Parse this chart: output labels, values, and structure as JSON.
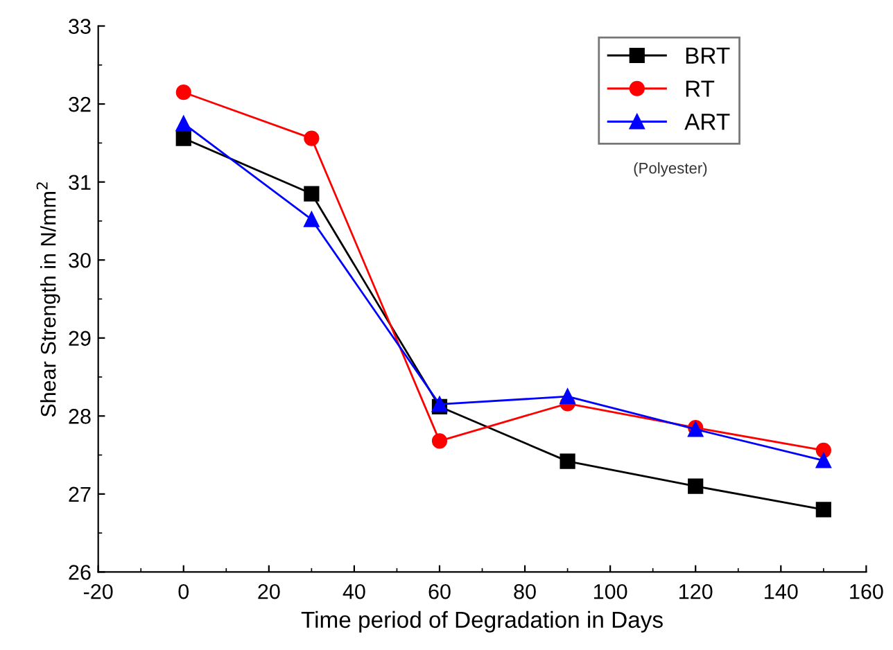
{
  "chart_data": {
    "type": "line",
    "xlabel": "Time period of Degradation in Days",
    "ylabel": "Shear Strength in N/mm$^{2}$",
    "x": [
      0,
      30,
      60,
      90,
      120,
      150
    ],
    "series": [
      {
        "name": "BRT",
        "color": "#000000",
        "marker": "square",
        "values": [
          31.56,
          30.85,
          28.12,
          27.42,
          27.1,
          26.8
        ]
      },
      {
        "name": "RT",
        "color": "#ff0000",
        "marker": "circle",
        "values": [
          32.15,
          31.56,
          27.68,
          28.16,
          27.85,
          27.56
        ]
      },
      {
        "name": "ART",
        "color": "#0000ff",
        "marker": "triangle",
        "values": [
          31.75,
          30.52,
          28.15,
          28.25,
          27.83,
          27.43
        ]
      }
    ],
    "xlim": [
      -20,
      160
    ],
    "xticks": [
      -20,
      0,
      20,
      40,
      60,
      80,
      100,
      120,
      140,
      160
    ],
    "ylim": [
      26,
      33
    ],
    "yticks": [
      26,
      27,
      28,
      29,
      30,
      31,
      32,
      33
    ],
    "grid": false,
    "legend": "top right",
    "line_style": "solid",
    "annotations": [
      "(Polyester)"
    ]
  }
}
